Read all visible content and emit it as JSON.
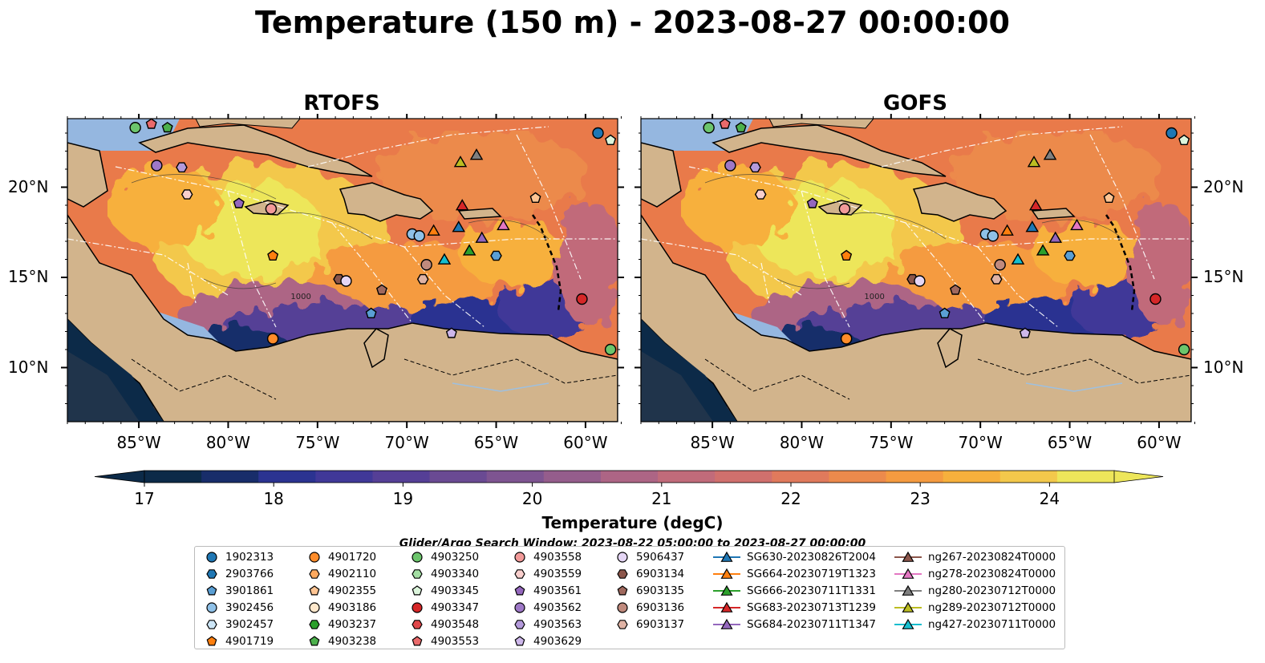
{
  "title": "Temperature (150 m) - 2023-08-27 00:00:00",
  "panels": [
    {
      "title": "RTOFS"
    },
    {
      "title": "GOFS"
    }
  ],
  "x_ticks": [
    "85°W",
    "80°W",
    "75°W",
    "70°W",
    "65°W",
    "60°W"
  ],
  "y_ticks": [
    "20°N",
    "15°N",
    "10°N"
  ],
  "contour_labels": [
    "1000",
    "1000"
  ],
  "colorbar": {
    "label": "Temperature (degC)",
    "ticks": [
      "17",
      "18",
      "19",
      "20",
      "21",
      "22",
      "23",
      "24"
    ],
    "min": 17,
    "max": 24.5,
    "colors": [
      "#0c2a48",
      "#182d6a",
      "#2b3391",
      "#403898",
      "#553f96",
      "#6a4a93",
      "#7e5491",
      "#955d8c",
      "#ad6585",
      "#c16b7a",
      "#d0706d",
      "#e07a5c",
      "#ec8a4c",
      "#f59b40",
      "#f7b03c",
      "#f3c84b",
      "#ede65a"
    ]
  },
  "search_window": "Glider/Argo Search Window: 2023-08-22 05:00:00 to 2023-08-27 00:00:00",
  "legend": {
    "columns": [
      [
        {
          "label": "1902313",
          "marker": "circle",
          "color": "#1f77b4"
        },
        {
          "label": "2903766",
          "marker": "hexagon",
          "color": "#1f77b4"
        },
        {
          "label": "3901861",
          "marker": "pentagon",
          "color": "#5a9fd4"
        },
        {
          "label": "3902456",
          "marker": "circle",
          "color": "#8fc1e8"
        },
        {
          "label": "3902457",
          "marker": "hexagon",
          "color": "#cde6f7"
        },
        {
          "label": "4901719",
          "marker": "pentagon",
          "color": "#ff7f0e"
        }
      ],
      [
        {
          "label": "4901720",
          "marker": "circle",
          "color": "#ff8c2a"
        },
        {
          "label": "4902110",
          "marker": "hexagon",
          "color": "#ffa95e"
        },
        {
          "label": "4902355",
          "marker": "pentagon",
          "color": "#ffc593"
        },
        {
          "label": "4903186",
          "marker": "circle",
          "color": "#ffe8cc"
        },
        {
          "label": "4903237",
          "marker": "hexagon",
          "color": "#2ca02c"
        },
        {
          "label": "4903238",
          "marker": "pentagon",
          "color": "#4cb04c"
        }
      ],
      [
        {
          "label": "4903250",
          "marker": "circle",
          "color": "#6cc56c"
        },
        {
          "label": "4903340",
          "marker": "hexagon",
          "color": "#a3dea3"
        },
        {
          "label": "4903345",
          "marker": "pentagon",
          "color": "#dcf5dc"
        },
        {
          "label": "4903347",
          "marker": "circle",
          "color": "#d62728"
        },
        {
          "label": "4903548",
          "marker": "hexagon",
          "color": "#e0474a"
        },
        {
          "label": "4903553",
          "marker": "pentagon",
          "color": "#ea6a6b"
        }
      ],
      [
        {
          "label": "4903558",
          "marker": "circle",
          "color": "#f29a99"
        },
        {
          "label": "4903559",
          "marker": "hexagon",
          "color": "#f9cfcd"
        },
        {
          "label": "4903561",
          "marker": "pentagon",
          "color": "#9467bd"
        },
        {
          "label": "4903562",
          "marker": "circle",
          "color": "#9e78c7"
        },
        {
          "label": "4903563",
          "marker": "hexagon",
          "color": "#b49adb"
        },
        {
          "label": "4903629",
          "marker": "pentagon",
          "color": "#cdb7ea"
        }
      ],
      [
        {
          "label": "5906437",
          "marker": "circle",
          "color": "#e5d6f5"
        },
        {
          "label": "6903134",
          "marker": "hexagon",
          "color": "#8c564b"
        },
        {
          "label": "6903135",
          "marker": "pentagon",
          "color": "#a0695e"
        },
        {
          "label": "6903136",
          "marker": "circle",
          "color": "#c08a7d"
        },
        {
          "label": "6903137",
          "marker": "hexagon",
          "color": "#e0b3a5"
        }
      ],
      [
        {
          "label": "SG630-20230826T2004",
          "marker": "triangle",
          "color": "#1f77b4"
        },
        {
          "label": "SG664-20230719T1323",
          "marker": "triangle",
          "color": "#ff7f0e"
        },
        {
          "label": "SG666-20230711T1331",
          "marker": "triangle",
          "color": "#2ca02c"
        },
        {
          "label": "SG683-20230713T1239",
          "marker": "triangle",
          "color": "#d62728"
        },
        {
          "label": "SG684-20230711T1347",
          "marker": "triangle",
          "color": "#9467bd"
        }
      ],
      [
        {
          "label": "ng267-20230824T0000",
          "marker": "triangle",
          "color": "#8c564b"
        },
        {
          "label": "ng278-20230824T0000",
          "marker": "triangle",
          "color": "#e377c2"
        },
        {
          "label": "ng280-20230712T0000",
          "marker": "triangle",
          "color": "#7f7f7f"
        },
        {
          "label": "ng289-20230712T0000",
          "marker": "triangle",
          "color": "#bcbd22"
        },
        {
          "label": "ng427-20230711T0000",
          "marker": "triangle",
          "color": "#17becf"
        }
      ]
    ]
  },
  "markers": [
    {
      "lon": -85.2,
      "lat": 23.3,
      "marker": "circle",
      "color": "#6cc56c"
    },
    {
      "lon": -84.3,
      "lat": 23.5,
      "marker": "pentagon",
      "color": "#ea6a6b"
    },
    {
      "lon": -83.4,
      "lat": 23.3,
      "marker": "pentagon",
      "color": "#4cb04c"
    },
    {
      "lon": -84.0,
      "lat": 21.2,
      "marker": "circle",
      "color": "#9e78c7"
    },
    {
      "lon": -82.6,
      "lat": 21.1,
      "marker": "hexagon",
      "color": "#b49adb"
    },
    {
      "lon": -82.3,
      "lat": 19.6,
      "marker": "hexagon",
      "color": "#f9cfcd"
    },
    {
      "lon": -79.4,
      "lat": 19.1,
      "marker": "pentagon",
      "color": "#9467bd"
    },
    {
      "lon": -77.6,
      "lat": 18.8,
      "marker": "circle",
      "color": "#f29a99"
    },
    {
      "lon": -77.5,
      "lat": 16.2,
      "marker": "pentagon",
      "color": "#ff7f0e"
    },
    {
      "lon": -73.8,
      "lat": 14.9,
      "marker": "hexagon",
      "color": "#8c564b"
    },
    {
      "lon": -73.4,
      "lat": 14.8,
      "marker": "circle",
      "color": "#e5d6f5"
    },
    {
      "lon": -71.4,
      "lat": 14.3,
      "marker": "pentagon",
      "color": "#a0695e"
    },
    {
      "lon": -72.0,
      "lat": 13.0,
      "marker": "pentagon",
      "color": "#5a9fd4"
    },
    {
      "lon": -77.5,
      "lat": 11.6,
      "marker": "circle",
      "color": "#ff8c2a"
    },
    {
      "lon": -69.7,
      "lat": 17.4,
      "marker": "circle",
      "color": "#8fc1e8"
    },
    {
      "lon": -69.3,
      "lat": 17.3,
      "marker": "circle",
      "color": "#8fc1e8"
    },
    {
      "lon": -68.9,
      "lat": 15.7,
      "marker": "circle",
      "color": "#c08a7d"
    },
    {
      "lon": -69.1,
      "lat": 14.9,
      "marker": "hexagon",
      "color": "#e0b3a5"
    },
    {
      "lon": -62.8,
      "lat": 19.4,
      "marker": "pentagon",
      "color": "#ffc593"
    },
    {
      "lon": -65.0,
      "lat": 16.2,
      "marker": "hexagon",
      "color": "#5a9fd4"
    },
    {
      "lon": -67.5,
      "lat": 11.9,
      "marker": "pentagon",
      "color": "#cdb7ea"
    },
    {
      "lon": -60.2,
      "lat": 13.8,
      "marker": "circle",
      "color": "#d62728"
    },
    {
      "lon": -59.3,
      "lat": 23.0,
      "marker": "circle",
      "color": "#1f77b4"
    },
    {
      "lon": -58.6,
      "lat": 22.6,
      "marker": "pentagon",
      "color": "#dcf5dc"
    },
    {
      "lon": -58.6,
      "lat": 11.0,
      "marker": "circle",
      "color": "#6cc56c"
    },
    {
      "lon": -67.0,
      "lat": 21.4,
      "marker": "triangle",
      "color": "#bcbd22"
    },
    {
      "lon": -66.1,
      "lat": 21.8,
      "marker": "triangle",
      "color": "#7f7f7f"
    },
    {
      "lon": -66.9,
      "lat": 19.0,
      "marker": "triangle",
      "color": "#d62728"
    },
    {
      "lon": -68.5,
      "lat": 17.6,
      "marker": "triangle",
      "color": "#ff7f0e"
    },
    {
      "lon": -67.1,
      "lat": 17.8,
      "marker": "triangle",
      "color": "#1f77b4"
    },
    {
      "lon": -65.8,
      "lat": 17.2,
      "marker": "triangle",
      "color": "#9467bd"
    },
    {
      "lon": -64.6,
      "lat": 17.9,
      "marker": "triangle",
      "color": "#e377c2"
    },
    {
      "lon": -66.5,
      "lat": 16.5,
      "marker": "triangle",
      "color": "#2ca02c"
    },
    {
      "lon": -67.9,
      "lat": 16.0,
      "marker": "triangle",
      "color": "#17becf"
    }
  ]
}
